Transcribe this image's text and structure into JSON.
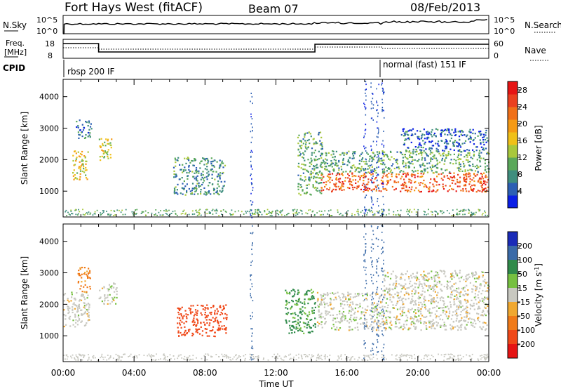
{
  "header": {
    "title": "Fort Hays West (fitACF)",
    "beam": "Beam 07",
    "date": "08/Feb/2013"
  },
  "top_panel": {
    "left_label": "N.Sky",
    "right_label": "N.Search",
    "left_ticks": [
      "10^5",
      "10^0"
    ],
    "right_ticks": [
      "10^5",
      "10^0"
    ]
  },
  "freq_panel": {
    "left_label_1": "Freq.",
    "left_label_2": "[MHz]",
    "right_label": "Nave",
    "left_ticks": [
      "18",
      "8"
    ],
    "right_ticks": [
      "60",
      "0"
    ]
  },
  "cpid": {
    "label": "CPID",
    "modes": [
      {
        "text": "rbsp 200 IF",
        "start_hour": 0
      },
      {
        "text": "normal (fast) 151 IF",
        "start_hour": 18
      }
    ]
  },
  "chart_data": [
    {
      "type": "heatmap",
      "title": "Power",
      "xlabel": "Time UT",
      "ylabel": "Slant Range [km]",
      "xlim_hours": [
        0,
        24
      ],
      "ylim_km": [
        180,
        4550
      ],
      "x_ticks": [
        "00:00",
        "04:00",
        "08:00",
        "12:00",
        "16:00",
        "20:00",
        "00:00"
      ],
      "y_ticks": [
        1000,
        2000,
        3000,
        4000
      ],
      "colorbar": {
        "label": "Power [dB]",
        "ticks": [
          "4",
          "8",
          "12",
          "16",
          "20",
          "24",
          "28"
        ],
        "range": [
          0,
          30
        ],
        "colors": [
          "#0a1ee6",
          "#2c5fb4",
          "#3f8e7e",
          "#5aa85a",
          "#a8c83c",
          "#f0c018",
          "#f59a14",
          "#f07018",
          "#ea4020",
          "#e61414"
        ]
      },
      "regions": [
        {
          "t": [
            0.5,
            1.4
          ],
          "r": [
            1350,
            2300
          ],
          "db": 16
        },
        {
          "t": [
            0.7,
            1.6
          ],
          "r": [
            2700,
            3300
          ],
          "db": 6
        },
        {
          "t": [
            2.0,
            2.7
          ],
          "r": [
            1900,
            2700
          ],
          "db": 14
        },
        {
          "t": [
            6.2,
            9.1
          ],
          "r": [
            900,
            2100
          ],
          "db": 8
        },
        {
          "t": [
            13.2,
            14.6
          ],
          "r": [
            900,
            2900
          ],
          "db": 10
        },
        {
          "t": [
            14.5,
            24.0
          ],
          "r": [
            1000,
            1600
          ],
          "db": 24
        },
        {
          "t": [
            14.5,
            24.0
          ],
          "r": [
            1600,
            2300
          ],
          "db": 10
        },
        {
          "t": [
            19.0,
            24.0
          ],
          "r": [
            2300,
            3000
          ],
          "db": 5
        }
      ]
    },
    {
      "type": "heatmap",
      "title": "Velocity",
      "xlabel": "Time UT",
      "ylabel": "Slant Range [km]",
      "xlim_hours": [
        0,
        24
      ],
      "ylim_km": [
        180,
        4550
      ],
      "x_ticks": [
        "00:00",
        "04:00",
        "08:00",
        "12:00",
        "16:00",
        "20:00",
        "00:00"
      ],
      "y_ticks": [
        1000,
        2000,
        3000,
        4000
      ],
      "colorbar": {
        "label": "Velocity [m s^-1]",
        "ticks": [
          "200",
          "100",
          "50",
          "15",
          "-15",
          "-50",
          "-100",
          "-200"
        ],
        "colors": [
          "#1a2bb8",
          "#3a6aa8",
          "#2f8a4a",
          "#76c040",
          "#c8c8c0",
          "#f0a830",
          "#f07a18",
          "#f04818",
          "#e61414"
        ]
      },
      "regions": [
        {
          "t": [
            0.0,
            1.5
          ],
          "r": [
            1300,
            2400
          ],
          "v": 0
        },
        {
          "t": [
            0.8,
            1.5
          ],
          "r": [
            2400,
            3200
          ],
          "v": -60
        },
        {
          "t": [
            2.0,
            3.0
          ],
          "r": [
            2000,
            2700
          ],
          "v": 0
        },
        {
          "t": [
            6.4,
            9.2
          ],
          "r": [
            1000,
            2000
          ],
          "v": -120
        },
        {
          "t": [
            12.5,
            14.2
          ],
          "r": [
            1100,
            2500
          ],
          "v": 60
        },
        {
          "t": [
            14.3,
            24.0
          ],
          "r": [
            1200,
            2400
          ],
          "v": 0
        },
        {
          "t": [
            18.0,
            24.0
          ],
          "r": [
            2400,
            3100
          ],
          "v": 0
        }
      ]
    }
  ]
}
